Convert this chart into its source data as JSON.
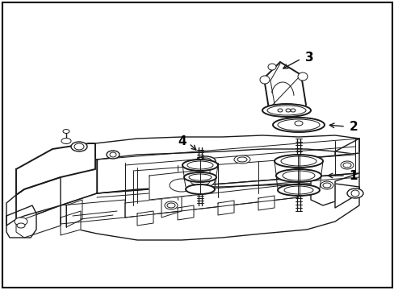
{
  "bg_color": "#ffffff",
  "line_color": "#1a1a1a",
  "label_color": "#000000",
  "border_color": "#000000",
  "lw_thin": 0.7,
  "lw_med": 1.0,
  "lw_thick": 1.4
}
